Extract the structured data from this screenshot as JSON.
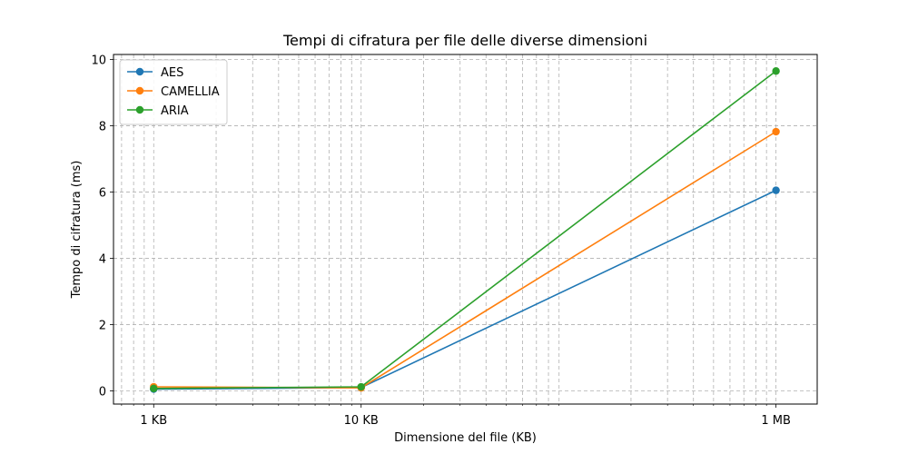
{
  "chart_data": {
    "type": "line",
    "title": "Tempi di cifratura per file delle diverse dimensioni",
    "xlabel": "Dimensione del file (KB)",
    "ylabel": "Tempo di cifratura (ms)",
    "x_scale": "log",
    "x": [
      1,
      10,
      1000
    ],
    "x_tick_labels": [
      "1 KB",
      "10 KB",
      "1 MB"
    ],
    "xlim": [
      0.64,
      1580
    ],
    "ylim": [
      -0.4,
      10.15
    ],
    "y_ticks": [
      0,
      2,
      4,
      6,
      8,
      10
    ],
    "grid": true,
    "legend_position": "top-left",
    "series": [
      {
        "name": "AES",
        "color": "#1f77b4",
        "values": [
          0.05,
          0.1,
          6.05
        ]
      },
      {
        "name": "CAMELLIA",
        "color": "#ff7f0e",
        "values": [
          0.12,
          0.09,
          7.82
        ]
      },
      {
        "name": "ARIA",
        "color": "#2ca02c",
        "values": [
          0.07,
          0.12,
          9.65
        ]
      }
    ]
  }
}
